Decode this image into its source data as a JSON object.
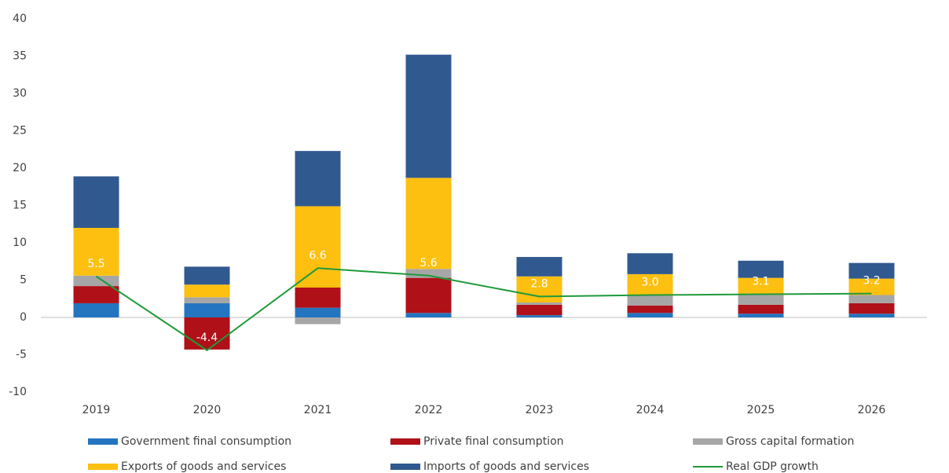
{
  "chart_data": {
    "type": "bar",
    "categories": [
      "2019",
      "2020",
      "2021",
      "2022",
      "2023",
      "2024",
      "2025",
      "2026"
    ],
    "series": [
      {
        "name": "Government final consumption",
        "color": "#2475c0",
        "values": [
          1.9,
          1.9,
          1.3,
          0.6,
          0.3,
          0.6,
          0.5,
          0.5
        ]
      },
      {
        "name": "Private final consumption",
        "color": "#b01018",
        "values": [
          2.3,
          -4.3,
          2.7,
          4.7,
          1.4,
          1.0,
          1.2,
          1.4
        ]
      },
      {
        "name": "Gross capital formation",
        "color": "#a6a6a6",
        "values": [
          1.4,
          0.8,
          -0.9,
          1.2,
          0.3,
          1.3,
          1.3,
          1.1
        ]
      },
      {
        "name": "Exports of goods and services",
        "color": "#fdc010",
        "values": [
          6.4,
          1.7,
          10.9,
          12.2,
          3.5,
          2.9,
          2.3,
          2.2
        ]
      },
      {
        "name": "Imports of goods and services",
        "color": "#30598f",
        "values": [
          6.9,
          2.4,
          7.4,
          16.5,
          2.6,
          2.8,
          2.3,
          2.1
        ]
      },
      {
        "name": "Real GDP growth",
        "type": "line",
        "color": "#1f9a3a",
        "values": [
          5.5,
          -4.4,
          6.6,
          5.6,
          2.8,
          3.0,
          3.1,
          3.2
        ],
        "value_labels": [
          "5.5",
          "-4.4",
          "6.6",
          "5.6",
          "2.8",
          "3.0",
          "3.1",
          "3.2"
        ]
      }
    ],
    "ylim": [
      -10,
      40
    ],
    "yticks": [
      -10,
      -5,
      0,
      5,
      10,
      15,
      20,
      25,
      30,
      35,
      40
    ]
  }
}
